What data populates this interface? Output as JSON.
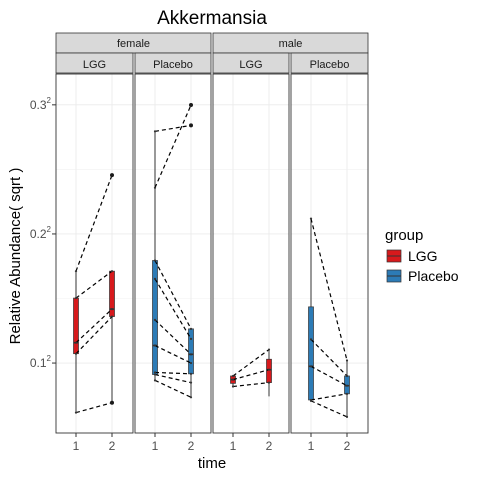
{
  "chart_data": {
    "type": "box",
    "title": "Akkermansia",
    "xlabel": "time",
    "ylabel": "Relative Abundance( sqrt )",
    "y_scale": "sqrt",
    "ylim": [
      0.0021,
      0.1049
    ],
    "y_ticks": [
      {
        "value": 0.01,
        "label": "0.1",
        "exp": "2"
      },
      {
        "value": 0.04,
        "label": "0.2",
        "exp": "2"
      },
      {
        "value": 0.09,
        "label": "0.3",
        "exp": "2"
      }
    ],
    "x_categories": [
      "1",
      "2"
    ],
    "facet_rows": [
      "female",
      "male"
    ],
    "facet_cols": [
      "LGG",
      "Placebo"
    ],
    "grid": true,
    "legend": {
      "title": "group",
      "position": "right",
      "entries": [
        {
          "label": "LGG",
          "color": "#d7191c"
        },
        {
          "label": "Placebo",
          "color": "#2c7bb6"
        }
      ]
    },
    "panels": [
      {
        "sex": "female",
        "group": "LGG",
        "color": "#d7191c",
        "boxes": [
          {
            "time": "1",
            "min": 0.0038,
            "q1": 0.0115,
            "median": 0.0134,
            "q3": 0.0226,
            "max": 0.0293
          },
          {
            "time": "2",
            "min": 0.0048,
            "q1": 0.0185,
            "median": 0.0201,
            "q3": 0.0293,
            "max": 0.0293
          }
        ],
        "outliers": [
          {
            "time": "2",
            "value": 0.0603
          },
          {
            "time": "2",
            "value": 0.0048
          }
        ],
        "pairs": [
          [
            0.0293,
            0.0603
          ],
          [
            0.0226,
            0.0293
          ],
          [
            0.0134,
            0.0201
          ],
          [
            0.0115,
            0.0185
          ],
          [
            0.0038,
            0.0048
          ]
        ]
      },
      {
        "sex": "female",
        "group": "Placebo",
        "color": "#2c7bb6",
        "boxes": [
          {
            "time": "1",
            "min": 0.0075,
            "q1": 0.0083,
            "median": 0.0129,
            "q3": 0.0322,
            "max": 0.0781
          },
          {
            "time": "2",
            "min": 0.0054,
            "q1": 0.0084,
            "median": 0.0114,
            "q3": 0.016,
            "max": 0.016
          }
        ],
        "outliers": [
          {
            "time": "2",
            "value": 0.0899
          },
          {
            "time": "2",
            "value": 0.0807
          }
        ],
        "pairs": [
          [
            0.0781,
            0.0807
          ],
          [
            0.0556,
            0.0899
          ],
          [
            0.0322,
            0.016
          ],
          [
            0.0273,
            0.0141
          ],
          [
            0.0178,
            0.0114
          ],
          [
            0.0129,
            0.01
          ],
          [
            0.0086,
            0.0084
          ],
          [
            0.0083,
            0.0072
          ],
          [
            0.0075,
            0.0054
          ]
        ]
      },
      {
        "sex": "male",
        "group": "LGG",
        "color": "#d7191c",
        "boxes": [
          {
            "time": "1",
            "min": 0.0067,
            "q1": 0.0071,
            "median": 0.0076,
            "q3": 0.0081,
            "max": 0.0081
          },
          {
            "time": "2",
            "min": 0.0055,
            "q1": 0.0072,
            "median": 0.009,
            "q3": 0.0106,
            "max": 0.0122
          }
        ],
        "outliers": [],
        "pairs": [
          [
            0.0081,
            0.0122
          ],
          [
            0.0076,
            0.009
          ],
          [
            0.0067,
            0.0072
          ]
        ]
      },
      {
        "sex": "male",
        "group": "Placebo",
        "color": "#2c7bb6",
        "boxes": [
          {
            "time": "1",
            "min": 0.005,
            "q1": 0.0051,
            "median": 0.0095,
            "q3": 0.0206,
            "max": 0.0449
          },
          {
            "time": "2",
            "min": 0.0034,
            "q1": 0.0058,
            "median": 0.0068,
            "q3": 0.0081,
            "max": 0.0104
          }
        ],
        "outliers": [],
        "pairs": [
          [
            0.0449,
            0.0104
          ],
          [
            0.014,
            0.0081
          ],
          [
            0.0095,
            0.0068
          ],
          [
            0.0051,
            0.0058
          ],
          [
            0.005,
            0.0034
          ]
        ]
      }
    ]
  }
}
